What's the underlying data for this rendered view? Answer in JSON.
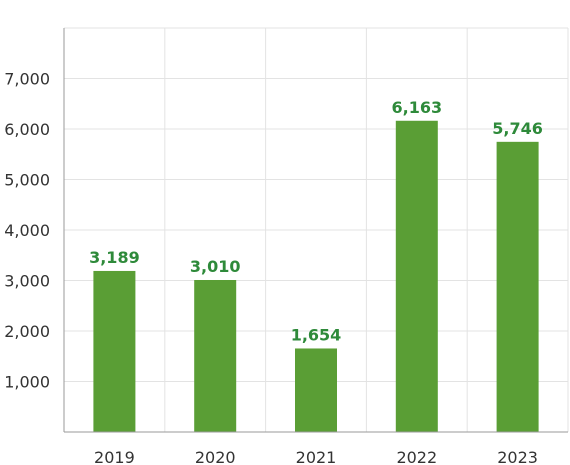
{
  "chart_data": {
    "type": "bar",
    "categories": [
      "2019",
      "2020",
      "2021",
      "2022",
      "2023"
    ],
    "values": [
      3189,
      3010,
      1654,
      6163,
      5746
    ],
    "data_labels": [
      "3,189",
      "3,010",
      "1,654",
      "6,163",
      "5,746"
    ],
    "title": "",
    "xlabel": "",
    "ylabel": "",
    "ylim": [
      0,
      8000
    ],
    "yticks": [
      1000,
      2000,
      3000,
      4000,
      5000,
      6000,
      7000
    ],
    "ytick_labels": [
      "1,000",
      "2,000",
      "3,000",
      "4,000",
      "5,000",
      "6,000",
      "7,000"
    ],
    "grid": true,
    "legend": "none",
    "colors": {
      "bar": "#5a9e35",
      "label": "#2e8a3a",
      "grid": "#e3e3e3",
      "axis": "#9a9a9a"
    }
  }
}
